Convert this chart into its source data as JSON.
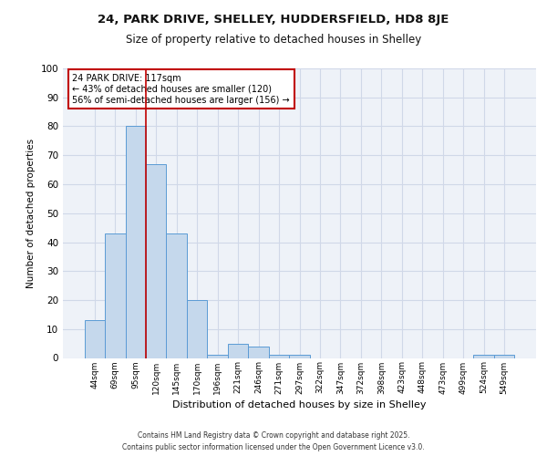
{
  "title1": "24, PARK DRIVE, SHELLEY, HUDDERSFIELD, HD8 8JE",
  "title2": "Size of property relative to detached houses in Shelley",
  "xlabel": "Distribution of detached houses by size in Shelley",
  "ylabel": "Number of detached properties",
  "categories": [
    "44sqm",
    "69sqm",
    "95sqm",
    "120sqm",
    "145sqm",
    "170sqm",
    "196sqm",
    "221sqm",
    "246sqm",
    "271sqm",
    "297sqm",
    "322sqm",
    "347sqm",
    "372sqm",
    "398sqm",
    "423sqm",
    "448sqm",
    "473sqm",
    "499sqm",
    "524sqm",
    "549sqm"
  ],
  "values": [
    13,
    43,
    80,
    67,
    43,
    20,
    1,
    5,
    4,
    1,
    1,
    0,
    0,
    0,
    0,
    0,
    0,
    0,
    0,
    1,
    1
  ],
  "bar_color": "#c5d8ec",
  "bar_edge_color": "#5b9bd5",
  "vline_color": "#c00000",
  "annotation_text": "24 PARK DRIVE: 117sqm\n← 43% of detached houses are smaller (120)\n56% of semi-detached houses are larger (156) →",
  "annotation_box_color": "#ffffff",
  "annotation_box_edge": "#c00000",
  "ylim": [
    0,
    100
  ],
  "yticks": [
    0,
    10,
    20,
    30,
    40,
    50,
    60,
    70,
    80,
    90,
    100
  ],
  "grid_color": "#d0d8e8",
  "background_color": "#eef2f8",
  "footer1": "Contains HM Land Registry data © Crown copyright and database right 2025.",
  "footer2": "Contains public sector information licensed under the Open Government Licence v3.0."
}
